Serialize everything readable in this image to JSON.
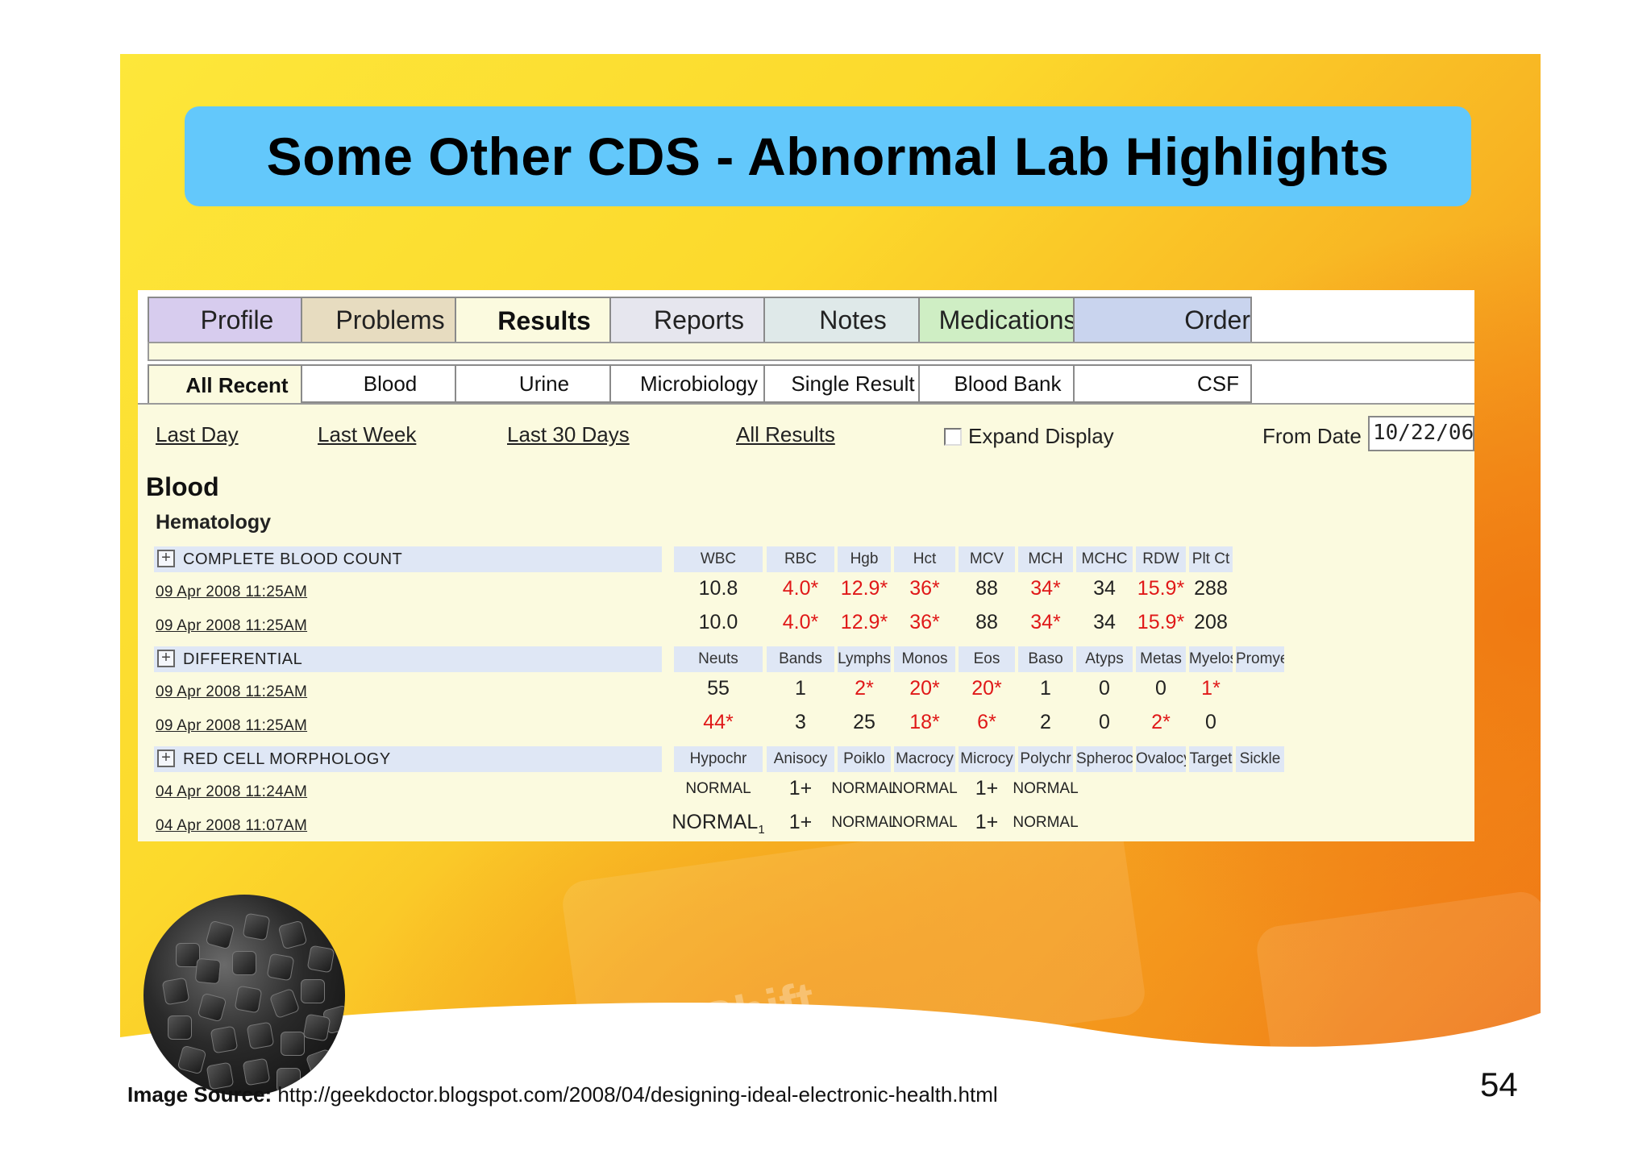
{
  "slide": {
    "title": "Some Other CDS - Abnormal Lab Highlights",
    "page_number": "54",
    "source_label": "Image Source:",
    "source_url": "http://geekdoctor.blogspot.com/2008/04/designing-ideal-electronic-health.html",
    "watermark_key_label": "Shift"
  },
  "colors": {
    "title_bg": "#63c8fb",
    "panel_bg": "#fbfadf",
    "abnormal": "#e01818",
    "header_bg": "#dfe7f5"
  },
  "tabs": [
    {
      "label": "Profile",
      "color": "#d7ccee",
      "active": false
    },
    {
      "label": "Problems",
      "color": "#e7dcc0",
      "active": false
    },
    {
      "label": "Results",
      "color": "#fbfadf",
      "active": true
    },
    {
      "label": "Reports",
      "color": "#e6e6ee",
      "active": false
    },
    {
      "label": "Notes",
      "color": "#dfe9e9",
      "active": false
    },
    {
      "label": "Medications",
      "color": "#cfeec4",
      "active": false
    },
    {
      "label": "Order",
      "color": "#c9d4ee",
      "active": false
    }
  ],
  "subtabs": [
    {
      "label": "All Recent",
      "active": true
    },
    {
      "label": "Blood",
      "active": false
    },
    {
      "label": "Urine",
      "active": false
    },
    {
      "label": "Microbiology",
      "active": false
    },
    {
      "label": "Single Result",
      "active": false
    },
    {
      "label": "Blood Bank",
      "active": false
    },
    {
      "label": "CSF",
      "active": false
    }
  ],
  "range_links": [
    "Last Day",
    "Last Week",
    "Last 30 Days",
    "All Results"
  ],
  "expand_display": {
    "label": "Expand Display",
    "checked": false
  },
  "from_date": {
    "label": "From Date",
    "value": "10/22/06"
  },
  "section": "Blood",
  "subsection": "Hematology",
  "groups": [
    {
      "name": "COMPLETE BLOOD COUNT",
      "columns": [
        "WBC",
        "RBC",
        "Hgb",
        "Hct",
        "MCV",
        "MCH",
        "MCHC",
        "RDW",
        "Plt Ct",
        ""
      ],
      "rows": [
        {
          "date": "09 Apr 2008 11:25AM",
          "cells": [
            {
              "v": "10.8",
              "abn": false
            },
            {
              "v": "4.0*",
              "abn": true
            },
            {
              "v": "12.9*",
              "abn": true
            },
            {
              "v": "36*",
              "abn": true
            },
            {
              "v": "88",
              "abn": false
            },
            {
              "v": "34*",
              "abn": true
            },
            {
              "v": "34",
              "abn": false
            },
            {
              "v": "15.9*",
              "abn": true
            },
            {
              "v": "288",
              "abn": false
            },
            {
              "v": "",
              "abn": false
            }
          ]
        },
        {
          "date": "09 Apr 2008 11:25AM",
          "cells": [
            {
              "v": "10.0",
              "abn": false
            },
            {
              "v": "4.0*",
              "abn": true
            },
            {
              "v": "12.9*",
              "abn": true
            },
            {
              "v": "36*",
              "abn": true
            },
            {
              "v": "88",
              "abn": false
            },
            {
              "v": "34*",
              "abn": true
            },
            {
              "v": "34",
              "abn": false
            },
            {
              "v": "15.9*",
              "abn": true
            },
            {
              "v": "208",
              "abn": false
            },
            {
              "v": "",
              "abn": false
            }
          ]
        }
      ]
    },
    {
      "name": "DIFFERENTIAL",
      "columns": [
        "Neuts",
        "Bands",
        "Lymphs",
        "Monos",
        "Eos",
        "Baso",
        "Atyps",
        "Metas",
        "Myelos",
        "Promye"
      ],
      "rows": [
        {
          "date": "09 Apr 2008 11:25AM",
          "cells": [
            {
              "v": "55",
              "abn": false
            },
            {
              "v": "1",
              "abn": false
            },
            {
              "v": "2*",
              "abn": true
            },
            {
              "v": "20*",
              "abn": true
            },
            {
              "v": "20*",
              "abn": true
            },
            {
              "v": "1",
              "abn": false
            },
            {
              "v": "0",
              "abn": false
            },
            {
              "v": "0",
              "abn": false
            },
            {
              "v": "1*",
              "abn": true
            },
            {
              "v": "",
              "abn": false
            }
          ]
        },
        {
          "date": "09 Apr 2008 11:25AM",
          "cells": [
            {
              "v": "44*",
              "abn": true
            },
            {
              "v": "3",
              "abn": false
            },
            {
              "v": "25",
              "abn": false
            },
            {
              "v": "18*",
              "abn": true
            },
            {
              "v": "6*",
              "abn": true
            },
            {
              "v": "2",
              "abn": false
            },
            {
              "v": "0",
              "abn": false
            },
            {
              "v": "2*",
              "abn": true
            },
            {
              "v": "0",
              "abn": false
            },
            {
              "v": "",
              "abn": false
            }
          ]
        }
      ]
    },
    {
      "name": "RED CELL MORPHOLOGY",
      "columns": [
        "Hypochr",
        "Anisocy",
        "Poiklo",
        "Macrocy",
        "Microcy",
        "Polychr",
        "Spheroc",
        "Ovalocy",
        "Target",
        "Sickle"
      ],
      "rows": [
        {
          "date": "04 Apr 2008 11:24AM",
          "cells": [
            {
              "v": "NORMAL",
              "abn": false,
              "small": true
            },
            {
              "v": "1+",
              "abn": false
            },
            {
              "v": "NORMAL",
              "abn": false,
              "small": true
            },
            {
              "v": "NORMAL",
              "abn": false,
              "small": true
            },
            {
              "v": "1+",
              "abn": false
            },
            {
              "v": "NORMAL",
              "abn": false,
              "small": true
            },
            {
              "v": "",
              "abn": false
            },
            {
              "v": "",
              "abn": false
            },
            {
              "v": "",
              "abn": false
            },
            {
              "v": "",
              "abn": false
            }
          ]
        },
        {
          "date": "04 Apr 2008 11:07AM",
          "cells": [
            {
              "v": "NORMAL",
              "abn": false,
              "footnote": "1"
            },
            {
              "v": "1+",
              "abn": false
            },
            {
              "v": "NORMAL",
              "abn": false,
              "small": true
            },
            {
              "v": "NORMAL",
              "abn": false,
              "small": true
            },
            {
              "v": "1+",
              "abn": false
            },
            {
              "v": "NORMAL",
              "abn": false,
              "small": true
            },
            {
              "v": "",
              "abn": false
            },
            {
              "v": "",
              "abn": false
            },
            {
              "v": "",
              "abn": false
            },
            {
              "v": "",
              "abn": false
            }
          ]
        }
      ]
    }
  ]
}
